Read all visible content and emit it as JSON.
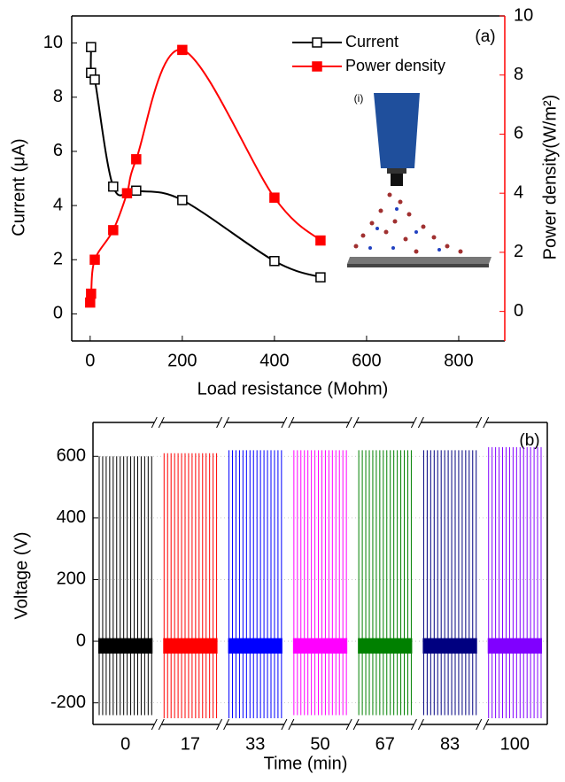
{
  "chart_data": [
    {
      "type": "line",
      "panel_label": "(a)",
      "inset_label": "(i)",
      "x_label": "Load resistance (Mohm)",
      "y_label": "Current (μA)",
      "y2_label": "Power density(W/m²)",
      "xlim": [
        -40,
        900
      ],
      "xticks": [
        0,
        200,
        400,
        600,
        800
      ],
      "ylim": [
        -1,
        11
      ],
      "yticks": [
        0,
        2,
        4,
        6,
        8,
        10
      ],
      "y2lim": [
        -1,
        10
      ],
      "y2ticks": [
        0,
        2,
        4,
        6,
        8,
        10
      ],
      "legend": "upper right",
      "series": [
        {
          "name": "Current",
          "color": "#000000",
          "marker": "open-square",
          "x": [
            2,
            2,
            10,
            50,
            100,
            200,
            400,
            500
          ],
          "values": [
            9.85,
            8.9,
            8.65,
            4.7,
            4.55,
            4.2,
            1.95,
            1.35
          ]
        },
        {
          "name": "Power density",
          "color": "#ff0000",
          "marker": "square",
          "axis": "y2",
          "x": [
            0,
            2,
            10,
            50,
            80,
            100,
            200,
            400,
            500
          ],
          "values": [
            0.3,
            0.6,
            1.75,
            2.75,
            4.0,
            5.15,
            8.85,
            3.85,
            2.4
          ]
        }
      ]
    },
    {
      "type": "spikes",
      "panel_label": "(b)",
      "x_label": "Time (min)",
      "y_label": "Voltage (V)",
      "ylim": [
        -270,
        710
      ],
      "yticks": [
        -200,
        0,
        200,
        400,
        600
      ],
      "grid": true,
      "categories": [
        "0",
        "17",
        "33",
        "50",
        "67",
        "83",
        "100"
      ],
      "colors": [
        "#000000",
        "#ff0000",
        "#0000ff",
        "#ff00ff",
        "#008000",
        "#000080",
        "#8000ff"
      ],
      "peaks": [
        600,
        610,
        620,
        620,
        620,
        620,
        630
      ],
      "troughs": [
        -240,
        -250,
        -250,
        -240,
        -240,
        -240,
        -250
      ],
      "baseline_band": [
        -40,
        10
      ]
    }
  ]
}
